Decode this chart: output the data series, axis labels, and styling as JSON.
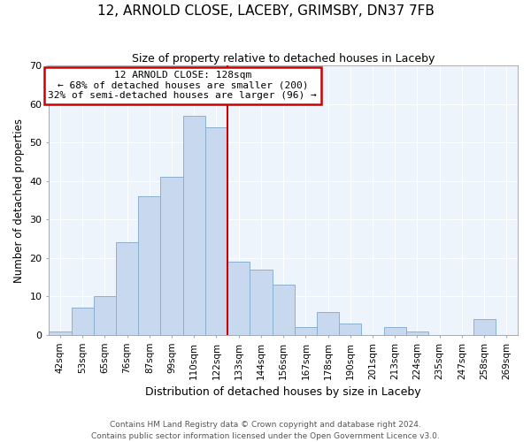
{
  "title": "12, ARNOLD CLOSE, LACEBY, GRIMSBY, DN37 7FB",
  "subtitle": "Size of property relative to detached houses in Laceby",
  "xlabel": "Distribution of detached houses by size in Laceby",
  "ylabel": "Number of detached properties",
  "bin_labels": [
    "42sqm",
    "53sqm",
    "65sqm",
    "76sqm",
    "87sqm",
    "99sqm",
    "110sqm",
    "122sqm",
    "133sqm",
    "144sqm",
    "156sqm",
    "167sqm",
    "178sqm",
    "190sqm",
    "201sqm",
    "213sqm",
    "224sqm",
    "235sqm",
    "247sqm",
    "258sqm",
    "269sqm"
  ],
  "bar_heights": [
    1,
    7,
    10,
    24,
    36,
    41,
    57,
    54,
    19,
    17,
    13,
    2,
    6,
    3,
    0,
    2,
    1,
    0,
    0,
    4,
    0
  ],
  "bar_color": "#c8d8ef",
  "bar_edgecolor": "#8ab0d0",
  "vline_color": "#cc0000",
  "annotation_title": "12 ARNOLD CLOSE: 128sqm",
  "annotation_line1": "← 68% of detached houses are smaller (200)",
  "annotation_line2": "32% of semi-detached houses are larger (96) →",
  "annotation_box_edgecolor": "#cc0000",
  "ylim": [
    0,
    70
  ],
  "yticks": [
    0,
    10,
    20,
    30,
    40,
    50,
    60,
    70
  ],
  "grid_color": "#c8d8ef",
  "ax_bgcolor": "#eef4fb",
  "footer1": "Contains HM Land Registry data © Crown copyright and database right 2024.",
  "footer2": "Contains public sector information licensed under the Open Government Licence v3.0."
}
